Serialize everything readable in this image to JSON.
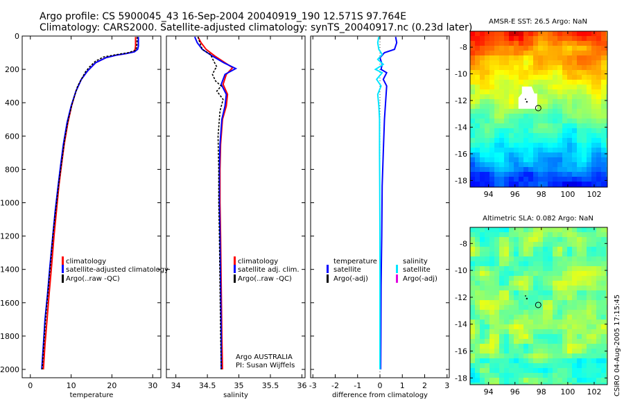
{
  "title_line1": "Argo profile: CS 5900045_43 16-Sep-2004 20040919_190 12.571S 97.764E",
  "title_line2": "Climatology: CARS2000. Satellite-adjusted climatology: synTS_20040917.nc (0.23d later)",
  "credit": "CSIRO 04-Aug-2005 17:15:45",
  "colors": {
    "climatology": "#ff0000",
    "satellite": "#0000ff",
    "argo": "#000000",
    "sat_salinity": "#00e5ff",
    "argo_adj_salinity": "#e000e0"
  },
  "chart_data": [
    {
      "id": "temperature",
      "type": "line",
      "xlabel": "temperature",
      "ylabel": "",
      "xlim": [
        -2,
        32
      ],
      "ylim": [
        2050,
        0
      ],
      "xticks": [
        0,
        10,
        20,
        30
      ],
      "yticks": [
        0,
        200,
        400,
        600,
        800,
        1000,
        1200,
        1400,
        1600,
        1800,
        2000
      ],
      "legend": [
        "climatology",
        "satellite-adjusted climatology",
        "Argo(..raw -QC)"
      ],
      "annotations": [],
      "series": [
        {
          "name": "climatology",
          "style": "line",
          "points": [
            [
              25.8,
              5
            ],
            [
              25.8,
              60
            ],
            [
              25.7,
              80
            ],
            [
              25.3,
              95
            ],
            [
              23.5,
              105
            ],
            [
              21,
              115
            ],
            [
              18.5,
              130
            ],
            [
              16,
              160
            ],
            [
              14,
              210
            ],
            [
              12.5,
              260
            ],
            [
              11.2,
              330
            ],
            [
              10.1,
              420
            ],
            [
              9.2,
              520
            ],
            [
              8.3,
              650
            ],
            [
              7.6,
              780
            ],
            [
              7,
              900
            ],
            [
              6.4,
              1050
            ],
            [
              5.8,
              1200
            ],
            [
              5.2,
              1380
            ],
            [
              4.6,
              1550
            ],
            [
              4.1,
              1700
            ],
            [
              3.6,
              1850
            ],
            [
              3.2,
              2000
            ]
          ]
        },
        {
          "name": "satellite-adjusted climatology",
          "style": "line",
          "points": [
            [
              26.5,
              5
            ],
            [
              26.5,
              60
            ],
            [
              26.3,
              80
            ],
            [
              25.5,
              95
            ],
            [
              23.5,
              105
            ],
            [
              21,
              115
            ],
            [
              18.5,
              130
            ],
            [
              16,
              160
            ],
            [
              14,
              210
            ],
            [
              12.5,
              260
            ],
            [
              11.2,
              330
            ],
            [
              10,
              420
            ],
            [
              9,
              520
            ],
            [
              8.1,
              650
            ],
            [
              7.4,
              780
            ],
            [
              6.8,
              900
            ],
            [
              6.1,
              1050
            ],
            [
              5.5,
              1200
            ],
            [
              4.8,
              1380
            ],
            [
              4.2,
              1550
            ],
            [
              3.6,
              1700
            ],
            [
              3.2,
              1850
            ],
            [
              2.8,
              2000
            ]
          ]
        },
        {
          "name": "Argo(..raw -QC)",
          "style": "dash",
          "points": [
            [
              26.2,
              5
            ],
            [
              26.1,
              60
            ],
            [
              25.9,
              85
            ],
            [
              24,
              100
            ],
            [
              21,
              112
            ],
            [
              18,
              125
            ],
            [
              16,
              150
            ],
            [
              14.5,
              185
            ],
            [
              13.5,
              215
            ],
            [
              12.6,
              255
            ],
            [
              11.6,
              300
            ],
            [
              10.3,
              400
            ],
            [
              9.3,
              500
            ],
            [
              8.4,
              620
            ],
            [
              7.7,
              750
            ],
            [
              7,
              880
            ],
            [
              6.3,
              1030
            ],
            [
              5.6,
              1180
            ],
            [
              5,
              1350
            ],
            [
              4.4,
              1520
            ],
            [
              3.8,
              1680
            ],
            [
              3.3,
              1850
            ],
            [
              2.9,
              2000
            ]
          ]
        }
      ]
    },
    {
      "id": "salinity",
      "type": "line",
      "xlabel": "salinity",
      "ylabel": "",
      "xlim": [
        33.85,
        36.05
      ],
      "ylim": [
        2050,
        0
      ],
      "xticks": [
        34,
        34.5,
        35,
        35.5,
        36
      ],
      "yticks": [
        0,
        200,
        400,
        600,
        800,
        1000,
        1200,
        1400,
        1600,
        1800,
        2000
      ],
      "legend": [
        "climatology",
        "satellite adj. clim.",
        "Argo(..raw -QC)"
      ],
      "annotations": [
        "Argo AUSTRALIA",
        "PI: Susan Wijffels"
      ],
      "series": [
        {
          "name": "climatology",
          "style": "line",
          "points": [
            [
              34.35,
              5
            ],
            [
              34.4,
              40
            ],
            [
              34.48,
              80
            ],
            [
              34.62,
              120
            ],
            [
              34.78,
              160
            ],
            [
              34.9,
              190
            ],
            [
              34.8,
              230
            ],
            [
              34.75,
              290
            ],
            [
              34.82,
              350
            ],
            [
              34.8,
              420
            ],
            [
              34.74,
              500
            ],
            [
              34.71,
              650
            ],
            [
              34.7,
              800
            ],
            [
              34.7,
              1000
            ],
            [
              34.71,
              1200
            ],
            [
              34.72,
              1500
            ],
            [
              34.73,
              1800
            ],
            [
              34.74,
              2000
            ]
          ]
        },
        {
          "name": "satellite adj. clim.",
          "style": "line",
          "points": [
            [
              34.3,
              5
            ],
            [
              34.34,
              40
            ],
            [
              34.42,
              80
            ],
            [
              34.58,
              120
            ],
            [
              34.76,
              160
            ],
            [
              34.95,
              195
            ],
            [
              34.78,
              230
            ],
            [
              34.72,
              290
            ],
            [
              34.8,
              350
            ],
            [
              34.78,
              420
            ],
            [
              34.73,
              500
            ],
            [
              34.7,
              650
            ],
            [
              34.69,
              800
            ],
            [
              34.69,
              1000
            ],
            [
              34.7,
              1200
            ],
            [
              34.71,
              1500
            ],
            [
              34.72,
              1800
            ],
            [
              34.72,
              2000
            ]
          ]
        },
        {
          "name": "Argo(..raw -QC)",
          "style": "dash",
          "points": [
            [
              34.35,
              5
            ],
            [
              34.38,
              40
            ],
            [
              34.42,
              80
            ],
            [
              34.55,
              110
            ],
            [
              34.6,
              150
            ],
            [
              34.65,
              185
            ],
            [
              34.62,
              200
            ],
            [
              34.58,
              230
            ],
            [
              34.63,
              270
            ],
            [
              34.72,
              300
            ],
            [
              34.65,
              330
            ],
            [
              34.75,
              380
            ],
            [
              34.7,
              450
            ],
            [
              34.67,
              600
            ],
            [
              34.68,
              800
            ],
            [
              34.68,
              1000
            ],
            [
              34.69,
              1200
            ],
            [
              34.7,
              1500
            ],
            [
              34.71,
              1800
            ],
            [
              34.72,
              2000
            ]
          ]
        }
      ]
    },
    {
      "id": "difference",
      "type": "line",
      "xlabel": "difference from climatology",
      "ylabel": "",
      "xlim": [
        -3.1,
        3.1
      ],
      "ylim": [
        2050,
        0
      ],
      "xticks": [
        -3,
        -2,
        -1,
        0,
        1,
        2,
        3
      ],
      "yticks": [
        0,
        200,
        400,
        600,
        800,
        1000,
        1200,
        1400,
        1600,
        1800,
        2000
      ],
      "legend": [
        "temperature",
        "satellite",
        "Argo(-adj)",
        "salinity",
        "satellite",
        "Argo(-adj)"
      ],
      "annotations": [],
      "series": [
        {
          "name": "temperature satellite",
          "style": "line",
          "points": [
            [
              0.7,
              5
            ],
            [
              0.75,
              40
            ],
            [
              0.65,
              80
            ],
            [
              0.2,
              100
            ],
            [
              0,
              130
            ],
            [
              0.1,
              170
            ],
            [
              0.05,
              200
            ],
            [
              0.3,
              220
            ],
            [
              0.15,
              260
            ],
            [
              0.3,
              300
            ],
            [
              0.25,
              400
            ],
            [
              0.2,
              500
            ],
            [
              0.15,
              700
            ],
            [
              0.1,
              900
            ],
            [
              0.08,
              1200
            ],
            [
              0.05,
              1500
            ],
            [
              0.04,
              1800
            ],
            [
              0.03,
              2000
            ]
          ]
        },
        {
          "name": "salinity satellite",
          "style": "line",
          "points": [
            [
              -0.05,
              5
            ],
            [
              -0.1,
              40
            ],
            [
              -0.05,
              80
            ],
            [
              0.1,
              110
            ],
            [
              -0.1,
              140
            ],
            [
              0.15,
              170
            ],
            [
              -0.2,
              200
            ],
            [
              0.1,
              220
            ],
            [
              -0.15,
              260
            ],
            [
              0.05,
              300
            ],
            [
              -0.1,
              350
            ],
            [
              -0.05,
              420
            ],
            [
              -0.02,
              500
            ],
            [
              -0.02,
              700
            ],
            [
              -0.01,
              900
            ],
            [
              0,
              1200
            ],
            [
              0,
              1500
            ],
            [
              0,
              1800
            ],
            [
              0,
              2000
            ]
          ]
        }
      ]
    },
    {
      "id": "sst_map",
      "type": "heatmap",
      "title": "AMSR-E SST: 26.5 Argo: NaN",
      "xlim": [
        92.6,
        103
      ],
      "ylim": [
        -18.5,
        -6.8
      ],
      "xticks": [
        94,
        96,
        98,
        100,
        102
      ],
      "yticks": [
        -8,
        -10,
        -12,
        -14,
        -16,
        -18
      ],
      "argo_position": [
        97.764,
        -12.571
      ]
    },
    {
      "id": "sla_map",
      "type": "heatmap",
      "title": "Altimetric SLA: 0.082 Argo: NaN",
      "xlim": [
        92.6,
        103
      ],
      "ylim": [
        -18.5,
        -6.8
      ],
      "xticks": [
        94,
        96,
        98,
        100,
        102
      ],
      "yticks": [
        -8,
        -10,
        -12,
        -14,
        -16,
        -18
      ],
      "argo_position": [
        97.764,
        -12.571
      ]
    }
  ]
}
